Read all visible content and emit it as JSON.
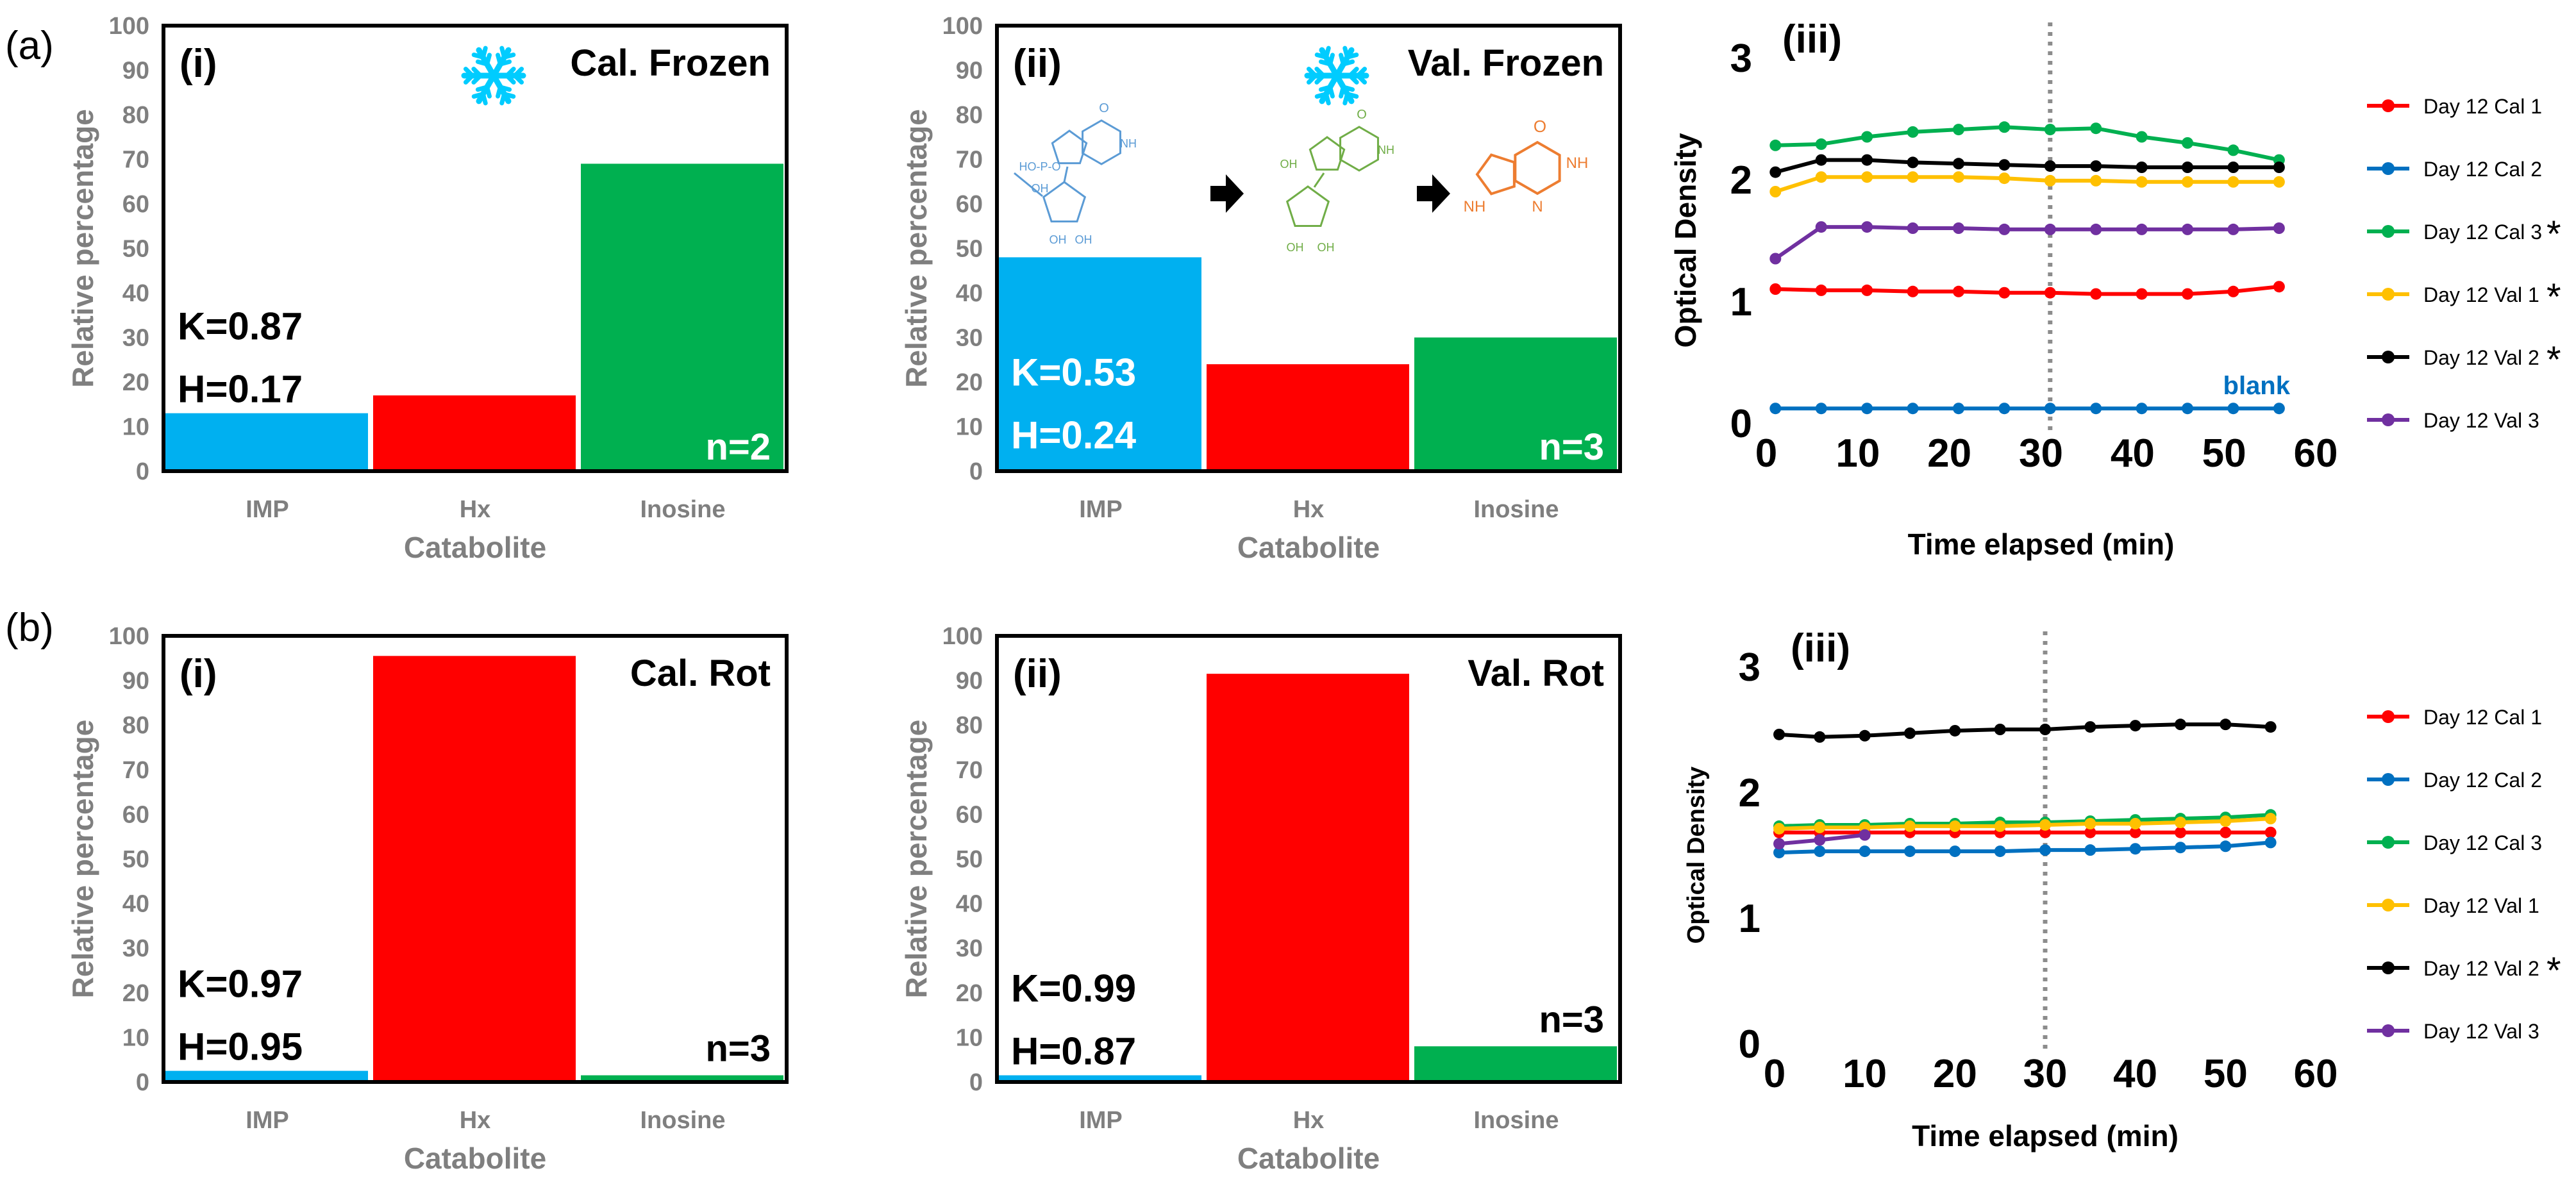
{
  "figure": {
    "row_labels": [
      "(a)",
      "(b)"
    ],
    "blank_label": "blank",
    "asterisk": "*",
    "structure_labels": {
      "imp_phosphate": "HO-P-O",
      "imp_oh": "OH",
      "ring_oh": "OH",
      "nh": "NH",
      "n": "N",
      "o": "O"
    }
  },
  "colors": {
    "imp": "#00b0f0",
    "hx": "#ff0000",
    "inosine": "#00b050",
    "cal1": "#ff0000",
    "cal2": "#0070c0",
    "cal3": "#00b050",
    "val1": "#ffc000",
    "val2": "#000000",
    "val3": "#7030a0",
    "blank": "#0070c0",
    "snow": "#00ccff",
    "imp_struct": "#5b9bd5",
    "ino_struct": "#70ad47",
    "hx_struct": "#ed7d31"
  },
  "chart_data": [
    {
      "id": "a-i",
      "type": "bar",
      "panel_label": "(i)",
      "title": "Cal. Frozen",
      "icon": "snowflake-icon",
      "categories": [
        "IMP",
        "Hx",
        "Inosine"
      ],
      "values": [
        13,
        17,
        69
      ],
      "ylim": [
        0,
        100
      ],
      "yticks": [
        "0",
        "10",
        "20",
        "30",
        "40",
        "50",
        "60",
        "70",
        "80",
        "90",
        "100"
      ],
      "xlabel": "Catabolite",
      "ylabel": "Relative percentage",
      "k_label": "K=0.87",
      "h_label": "H=0.17",
      "n_label": "n=2"
    },
    {
      "id": "a-ii",
      "type": "bar",
      "panel_label": "(ii)",
      "title": "Val. Frozen",
      "icon": "snowflake-icon",
      "categories": [
        "IMP",
        "Hx",
        "Inosine"
      ],
      "values": [
        48,
        24,
        30
      ],
      "ylim": [
        0,
        100
      ],
      "yticks": [
        "0",
        "10",
        "20",
        "30",
        "40",
        "50",
        "60",
        "70",
        "80",
        "90",
        "100"
      ],
      "xlabel": "Catabolite",
      "ylabel": "Relative percentage",
      "k_label": "K=0.53",
      "h_label": "H=0.24",
      "n_label": "n=3"
    },
    {
      "id": "a-iii",
      "type": "line",
      "panel_label": "(iii)",
      "xlabel": "Time elapsed (min)",
      "ylabel": "Optical Density",
      "xlim": [
        0,
        60
      ],
      "ylim": [
        0,
        3
      ],
      "xticks": [
        "0",
        "10",
        "20",
        "30",
        "40",
        "50",
        "60"
      ],
      "yticks": [
        "0",
        "1",
        "2",
        "3"
      ],
      "reference_x": 31,
      "x": [
        1,
        6,
        11,
        16,
        21,
        26,
        31,
        36,
        41,
        46,
        51,
        56
      ],
      "series": [
        {
          "name": "Day 12 Cal 1",
          "color_key": "cal1",
          "star": false,
          "values": [
            1.1,
            1.09,
            1.09,
            1.08,
            1.08,
            1.07,
            1.07,
            1.06,
            1.06,
            1.06,
            1.08,
            1.12
          ]
        },
        {
          "name": "Day 12 Cal 2",
          "color_key": "cal2",
          "star": false,
          "values": [
            0.12,
            0.12,
            0.12,
            0.12,
            0.12,
            0.12,
            0.12,
            0.12,
            0.12,
            0.12,
            0.12,
            0.12
          ]
        },
        {
          "name": "Day 12 Cal 3",
          "color_key": "cal3",
          "star": true,
          "values": [
            2.28,
            2.29,
            2.35,
            2.39,
            2.41,
            2.43,
            2.41,
            2.42,
            2.35,
            2.3,
            2.24,
            2.16
          ]
        },
        {
          "name": "Day 12 Val 1",
          "color_key": "val1",
          "star": true,
          "values": [
            1.9,
            2.02,
            2.02,
            2.02,
            2.02,
            2.01,
            1.99,
            1.99,
            1.98,
            1.98,
            1.98,
            1.98
          ]
        },
        {
          "name": "Day 12 Val 2",
          "color_key": "val2",
          "star": true,
          "values": [
            2.06,
            2.16,
            2.16,
            2.14,
            2.13,
            2.12,
            2.11,
            2.11,
            2.1,
            2.1,
            2.1,
            2.1
          ]
        },
        {
          "name": "Day 12 Val 3",
          "color_key": "val3",
          "star": false,
          "values": [
            1.35,
            1.61,
            1.61,
            1.6,
            1.6,
            1.59,
            1.59,
            1.59,
            1.59,
            1.59,
            1.59,
            1.6
          ]
        }
      ]
    },
    {
      "id": "b-i",
      "type": "bar",
      "panel_label": "(i)",
      "title": "Cal. Rot",
      "categories": [
        "IMP",
        "Hx",
        "Inosine"
      ],
      "values": [
        2.5,
        95.5,
        1.5
      ],
      "ylim": [
        0,
        100
      ],
      "yticks": [
        "0",
        "10",
        "20",
        "30",
        "40",
        "50",
        "60",
        "70",
        "80",
        "90",
        "100"
      ],
      "xlabel": "Catabolite",
      "ylabel": "Relative percentage",
      "k_label": "K=0.97",
      "h_label": "H=0.95",
      "n_label": "n=3"
    },
    {
      "id": "b-ii",
      "type": "bar",
      "panel_label": "(ii)",
      "title": "Val. Rot",
      "categories": [
        "IMP",
        "Hx",
        "Inosine"
      ],
      "values": [
        1.5,
        91.5,
        8
      ],
      "ylim": [
        0,
        100
      ],
      "yticks": [
        "0",
        "10",
        "20",
        "30",
        "40",
        "50",
        "60",
        "70",
        "80",
        "90",
        "100"
      ],
      "xlabel": "Catabolite",
      "ylabel": "Relative percentage",
      "k_label": "K=0.99",
      "h_label": "H=0.87",
      "n_label": "n=3"
    },
    {
      "id": "b-iii",
      "type": "line",
      "panel_label": "(iii)",
      "xlabel": "Time elapsed (min)",
      "ylabel": "Optical Density",
      "xlim": [
        0,
        60
      ],
      "ylim": [
        0,
        3
      ],
      "xticks": [
        "0",
        "10",
        "20",
        "30",
        "40",
        "50",
        "60"
      ],
      "yticks": [
        "0",
        "1",
        "2",
        "3"
      ],
      "reference_x": 30,
      "x": [
        0.5,
        5,
        10,
        15,
        20,
        25,
        30,
        35,
        40,
        45,
        50,
        55
      ],
      "series": [
        {
          "name": "Day 12 Cal 1",
          "color_key": "cal1",
          "star": false,
          "values": [
            1.68,
            1.68,
            1.68,
            1.68,
            1.68,
            1.68,
            1.68,
            1.68,
            1.68,
            1.68,
            1.68,
            1.68
          ]
        },
        {
          "name": "Day 12 Cal 2",
          "color_key": "cal2",
          "star": false,
          "values": [
            1.52,
            1.53,
            1.53,
            1.53,
            1.53,
            1.53,
            1.54,
            1.54,
            1.55,
            1.56,
            1.57,
            1.6
          ]
        },
        {
          "name": "Day 12 Cal 3",
          "color_key": "cal3",
          "star": false,
          "values": [
            1.73,
            1.74,
            1.74,
            1.75,
            1.75,
            1.76,
            1.76,
            1.77,
            1.78,
            1.79,
            1.8,
            1.82
          ]
        },
        {
          "name": "Day 12 Val 1",
          "color_key": "val1",
          "star": false,
          "values": [
            1.71,
            1.72,
            1.72,
            1.73,
            1.73,
            1.73,
            1.74,
            1.75,
            1.75,
            1.76,
            1.77,
            1.79
          ]
        },
        {
          "name": "Day 12 Val 2",
          "color_key": "val2",
          "star": true,
          "values": [
            2.46,
            2.44,
            2.45,
            2.47,
            2.49,
            2.5,
            2.5,
            2.52,
            2.53,
            2.54,
            2.54,
            2.52
          ]
        },
        {
          "name": "Day 12 Val 3",
          "color_key": "val3",
          "star": false,
          "values": [
            1.59,
            1.62,
            1.66,
            null,
            null,
            null,
            null,
            null,
            null,
            null,
            null,
            null
          ]
        }
      ]
    }
  ]
}
